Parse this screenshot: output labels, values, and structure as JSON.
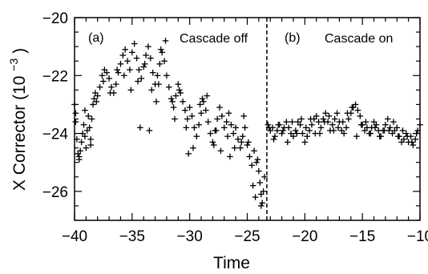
{
  "chart_data": {
    "type": "scatter",
    "title": "",
    "xlabel": "Time",
    "ylabel_main": "X Corrector",
    "ylabel_unit_base": "(10",
    "ylabel_unit_exp": "−3",
    "ylabel_unit_close": ")",
    "xlim": [
      -40,
      -10
    ],
    "ylim": [
      -27,
      -20
    ],
    "xticks": [
      {
        "value": -40,
        "label": "−40"
      },
      {
        "value": -35,
        "label": "−35"
      },
      {
        "value": -30,
        "label": "−30"
      },
      {
        "value": -25,
        "label": "−25"
      },
      {
        "value": -20,
        "label": "−20"
      },
      {
        "value": -15,
        "label": "−15"
      },
      {
        "value": -10,
        "label": "−10"
      }
    ],
    "yticks": [
      {
        "value": -20,
        "label": "−20"
      },
      {
        "value": -22,
        "label": "−22"
      },
      {
        "value": -24,
        "label": "−24"
      },
      {
        "value": -26,
        "label": "−26"
      }
    ],
    "divider_x": -23.3,
    "annotations": [
      {
        "panel": "a",
        "text": "(a)"
      },
      {
        "panel": "a",
        "text": "Cascade off"
      },
      {
        "panel": "b",
        "text": "(b)"
      },
      {
        "panel": "b",
        "text": "Cascade on"
      }
    ],
    "series": [
      {
        "marker": "plus",
        "x": [
          -40.0,
          -39.9,
          -39.8,
          -39.7,
          -39.6,
          -39.5,
          -39.4,
          -39.3,
          -39.2,
          -39.1,
          -39.0,
          -38.9,
          -38.8,
          -38.7,
          -38.6,
          -38.5,
          -38.4,
          -38.3,
          -38.2,
          -38.0,
          -37.8,
          -37.6,
          -37.4,
          -37.2,
          -37.0,
          -36.8,
          -36.6,
          -36.4,
          -36.2,
          -36.0,
          -35.8,
          -35.6,
          -35.4,
          -35.2,
          -35.0,
          -34.8,
          -34.6,
          -34.4,
          -34.2,
          -34.0,
          -33.8,
          -33.6,
          -33.4,
          -33.2,
          -33.0,
          -32.8,
          -32.6,
          -32.4,
          -32.2,
          -32.0,
          -31.8,
          -31.6,
          -31.4,
          -31.2,
          -31.0,
          -30.8,
          -30.6,
          -30.4,
          -30.2,
          -30.0,
          -29.8,
          -29.6,
          -29.4,
          -29.2,
          -29.0,
          -28.8,
          -28.6,
          -28.4,
          -28.2,
          -28.0,
          -27.8,
          -27.6,
          -27.4,
          -27.2,
          -27.0,
          -26.8,
          -26.6,
          -26.4,
          -26.2,
          -26.0,
          -25.8,
          -25.6,
          -25.4,
          -25.2,
          -25.0,
          -24.8,
          -24.6,
          -24.4,
          -24.2,
          -24.0,
          -23.9,
          -23.8,
          -23.7,
          -23.6,
          -23.5,
          -39.9,
          -39.6,
          -39.1,
          -38.6,
          -38.1,
          -37.5,
          -36.9,
          -36.3,
          -35.7,
          -35.1,
          -34.5,
          -33.9,
          -33.3,
          -32.7,
          -32.1,
          -31.5,
          -30.9,
          -30.3,
          -29.7,
          -29.1,
          -28.5,
          -27.9,
          -27.3,
          -26.7,
          -26.1,
          -25.5,
          -24.9,
          -24.5,
          -24.1,
          -23.8,
          -34.3,
          -33.5,
          -32.5,
          -32.9,
          -31.3,
          -30.1,
          -28.9,
          -27.7,
          -26.5,
          -25.3,
          -24.3,
          -23.2,
          -23.0,
          -22.8,
          -22.6,
          -22.4,
          -22.2,
          -22.0,
          -21.8,
          -21.6,
          -21.4,
          -21.2,
          -21.0,
          -20.8,
          -20.6,
          -20.4,
          -20.2,
          -20.0,
          -19.8,
          -19.6,
          -19.4,
          -19.2,
          -19.0,
          -18.8,
          -18.6,
          -18.4,
          -18.2,
          -18.0,
          -17.8,
          -17.6,
          -17.4,
          -17.2,
          -17.0,
          -16.8,
          -16.6,
          -16.4,
          -16.2,
          -16.0,
          -15.8,
          -15.6,
          -15.4,
          -15.2,
          -15.0,
          -14.8,
          -14.6,
          -14.4,
          -14.2,
          -14.0,
          -13.8,
          -13.6,
          -13.4,
          -13.2,
          -13.0,
          -12.8,
          -12.6,
          -12.4,
          -12.2,
          -12.0,
          -11.8,
          -11.6,
          -11.4,
          -11.2,
          -11.0,
          -10.8,
          -10.6,
          -10.4,
          -10.2,
          -10.0,
          -23.1,
          -22.7,
          -22.3,
          -21.9,
          -21.5,
          -21.1,
          -20.7,
          -20.3,
          -19.9,
          -19.5,
          -19.1,
          -18.7,
          -18.3,
          -17.9,
          -17.5,
          -17.1,
          -16.7,
          -16.3,
          -15.9,
          -15.5,
          -15.1,
          -14.7,
          -14.3,
          -13.9,
          -13.5,
          -13.1,
          -12.7,
          -12.3,
          -11.9,
          -11.5,
          -11.1,
          -10.7,
          -10.3
        ],
        "y": [
          -23.0,
          -23.6,
          -24.2,
          -24.7,
          -24.9,
          -24.6,
          -24.3,
          -24.0,
          -23.7,
          -24.1,
          -24.5,
          -23.9,
          -23.4,
          -23.8,
          -24.2,
          -23.5,
          -23.0,
          -22.8,
          -22.6,
          -22.7,
          -22.4,
          -22.0,
          -21.8,
          -21.9,
          -22.1,
          -22.4,
          -22.6,
          -22.3,
          -21.9,
          -21.6,
          -21.3,
          -21.1,
          -21.5,
          -21.8,
          -21.2,
          -20.9,
          -21.4,
          -21.8,
          -22.1,
          -21.7,
          -21.3,
          -21.0,
          -21.4,
          -21.9,
          -22.3,
          -22.0,
          -21.6,
          -21.2,
          -21.5,
          -22.0,
          -22.4,
          -22.8,
          -23.1,
          -22.7,
          -22.3,
          -22.6,
          -22.9,
          -23.2,
          -23.5,
          -23.1,
          -23.4,
          -23.8,
          -24.1,
          -23.7,
          -23.3,
          -22.9,
          -23.2,
          -23.6,
          -24.0,
          -24.3,
          -23.9,
          -23.5,
          -23.1,
          -23.4,
          -23.8,
          -23.6,
          -23.3,
          -23.7,
          -24.0,
          -23.8,
          -24.2,
          -24.5,
          -24.1,
          -23.8,
          -24.4,
          -24.8,
          -25.1,
          -24.6,
          -25.0,
          -25.3,
          -25.7,
          -26.1,
          -26.4,
          -26.0,
          -25.5,
          -23.3,
          -24.8,
          -23.2,
          -24.4,
          -22.9,
          -22.2,
          -22.6,
          -21.8,
          -22.0,
          -22.5,
          -22.2,
          -21.6,
          -22.5,
          -22.3,
          -20.8,
          -22.9,
          -22.5,
          -23.8,
          -24.5,
          -23.0,
          -22.7,
          -24.4,
          -24.6,
          -24.1,
          -24.5,
          -24.3,
          -24.3,
          -25.8,
          -24.9,
          -26.5,
          -23.8,
          -23.9,
          -21.1,
          -22.9,
          -23.5,
          -24.7,
          -22.8,
          -23.9,
          -24.8,
          -23.4,
          -26.2,
          -23.7,
          -23.9,
          -23.8,
          -24.1,
          -23.9,
          -23.7,
          -24.0,
          -23.8,
          -23.6,
          -23.8,
          -24.0,
          -24.1,
          -23.9,
          -23.6,
          -23.7,
          -24.0,
          -24.3,
          -24.1,
          -23.9,
          -23.7,
          -23.5,
          -23.4,
          -23.6,
          -23.8,
          -23.5,
          -23.3,
          -23.6,
          -23.9,
          -23.7,
          -23.5,
          -23.3,
          -23.6,
          -23.9,
          -24.0,
          -23.8,
          -23.5,
          -23.3,
          -23.1,
          -23.0,
          -23.2,
          -23.4,
          -23.7,
          -23.9,
          -23.8,
          -24.0,
          -23.8,
          -23.6,
          -23.7,
          -23.9,
          -24.1,
          -23.9,
          -23.7,
          -23.5,
          -23.8,
          -24.0,
          -23.9,
          -23.8,
          -24.1,
          -24.3,
          -24.2,
          -24.0,
          -24.3,
          -24.1,
          -24.4,
          -24.2,
          -23.9,
          -23.7,
          -23.8,
          -24.2,
          -23.7,
          -23.9,
          -24.3,
          -23.6,
          -24.0,
          -23.5,
          -23.8,
          -23.5,
          -24.0,
          -24.0,
          -23.6,
          -23.4,
          -23.9,
          -23.8,
          -23.6,
          -23.3,
          -23.1,
          -24.1,
          -23.7,
          -23.6,
          -24.0,
          -23.8,
          -24.1,
          -23.9,
          -23.9,
          -23.6,
          -24.1,
          -23.9,
          -24.1,
          -24.3,
          -24.0
        ]
      }
    ]
  }
}
